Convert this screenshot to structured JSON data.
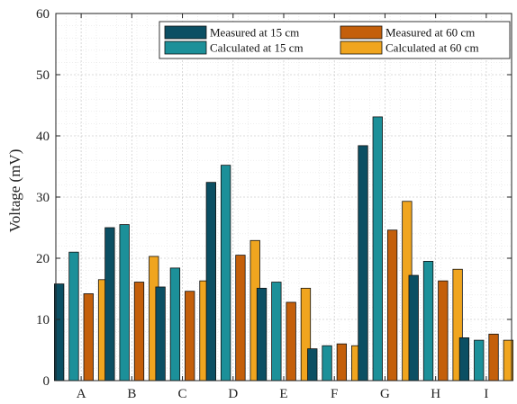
{
  "chart_data": {
    "type": "bar",
    "title": "",
    "xlabel": "",
    "ylabel": "Voltage (mV)",
    "ylim": [
      0,
      60
    ],
    "yticks": [
      0,
      10,
      20,
      30,
      40,
      50,
      60
    ],
    "grid": true,
    "legend_position": "top-right",
    "categories": [
      "A",
      "B",
      "C",
      "D",
      "E",
      "F",
      "G",
      "H",
      "I"
    ],
    "series": [
      {
        "name": "Measured at 15 cm",
        "color": "#0b4f63",
        "values": [
          15.8,
          25.0,
          15.3,
          32.4,
          15.1,
          5.2,
          38.4,
          17.2,
          7.0
        ]
      },
      {
        "name": "Calculated at 15 cm",
        "color": "#1c9099",
        "values": [
          21.0,
          25.5,
          18.4,
          35.2,
          16.1,
          5.7,
          43.1,
          19.5,
          6.6
        ]
      },
      {
        "name": "Measured at 60 cm",
        "color": "#c45f0a",
        "values": [
          14.2,
          16.1,
          14.6,
          20.5,
          12.8,
          6.0,
          24.6,
          16.3,
          7.6
        ]
      },
      {
        "name": "Calculated at 60 cm",
        "color": "#f0a51f",
        "values": [
          16.5,
          20.3,
          16.3,
          22.9,
          15.1,
          5.7,
          29.3,
          18.2,
          6.6
        ]
      }
    ]
  }
}
